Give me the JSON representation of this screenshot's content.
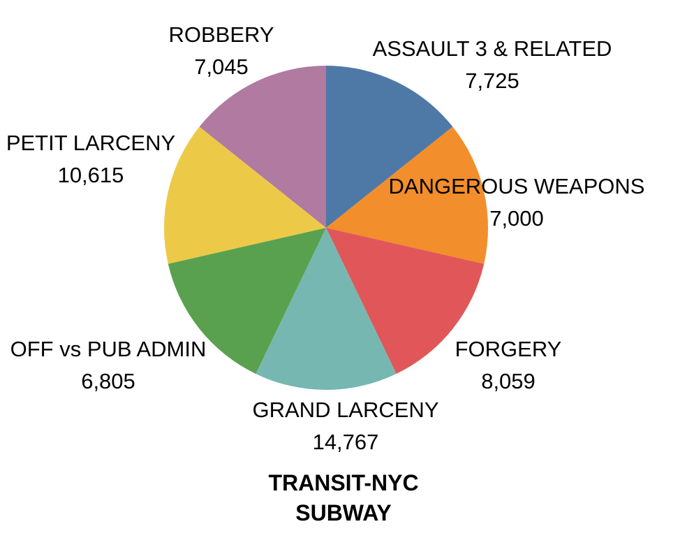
{
  "chart_data": {
    "type": "pie",
    "title": "TRANSIT-NYC SUBWAY",
    "categories": [
      "ASSAULT 3 & RELATED",
      "DANGEROUS WEAPONS",
      "FORGERY",
      "GRAND LARCENY",
      "OFF vs PUB ADMIN",
      "PETIT LARCENY",
      "ROBBERY"
    ],
    "values": [
      7725,
      7000,
      8059,
      14767,
      6805,
      10615,
      7045
    ],
    "colors": [
      "#4E79A7",
      "#F28E2B",
      "#E15759",
      "#76B7B2",
      "#59A14F",
      "#EDC948",
      "#B07AA1"
    ]
  }
}
